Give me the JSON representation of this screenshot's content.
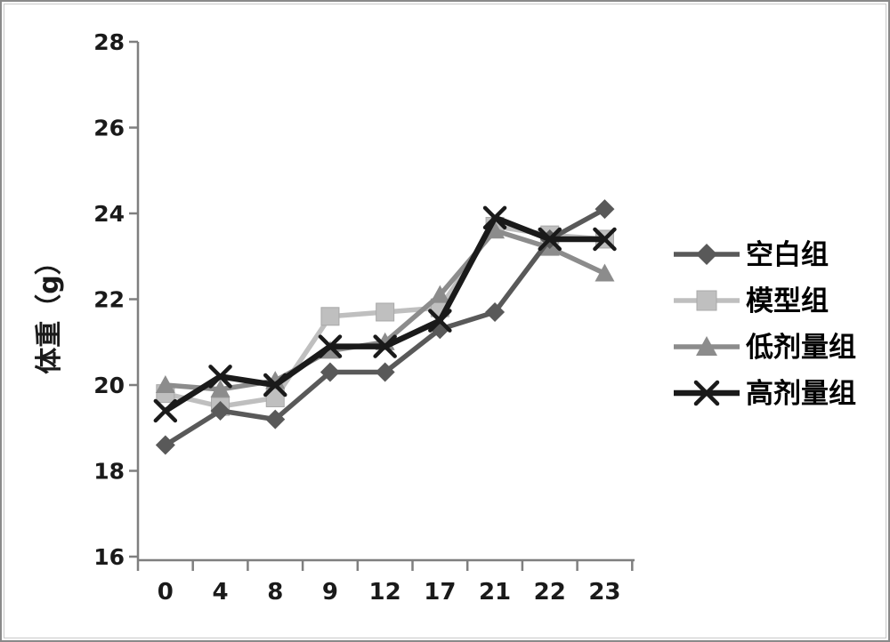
{
  "chart_data": {
    "type": "line",
    "title": "",
    "xlabel": "",
    "ylabel": "体重（g）",
    "categories": [
      "0",
      "4",
      "8",
      "9",
      "12",
      "17",
      "21",
      "22",
      "23"
    ],
    "y_ticks": [
      "16",
      "18",
      "20",
      "22",
      "24",
      "26",
      "28"
    ],
    "ylim": [
      16,
      28
    ],
    "grid": false,
    "legend_position": "right",
    "axis_color": "#7f7f7f",
    "text_color": "#1a1a1a",
    "background": "#ffffff",
    "series": [
      {
        "name": "空白组",
        "marker": "diamond",
        "color": "#595959",
        "values": [
          18.6,
          19.4,
          19.2,
          20.3,
          20.3,
          21.3,
          21.7,
          23.4,
          24.1
        ]
      },
      {
        "name": "模型组",
        "marker": "square",
        "color": "#bfbfbf",
        "values": [
          19.8,
          19.5,
          19.7,
          21.6,
          21.7,
          21.8,
          23.7,
          23.5,
          23.4
        ]
      },
      {
        "name": "低剂量组",
        "marker": "triangle",
        "color": "#8c8c8c",
        "values": [
          20.0,
          19.9,
          20.1,
          20.8,
          21.0,
          22.1,
          23.6,
          23.2,
          22.6
        ]
      },
      {
        "name": "高剂量组",
        "marker": "x",
        "color": "#1a1a1a",
        "values": [
          19.4,
          20.2,
          20.0,
          20.9,
          20.9,
          21.5,
          23.9,
          23.4,
          23.4
        ]
      }
    ]
  }
}
